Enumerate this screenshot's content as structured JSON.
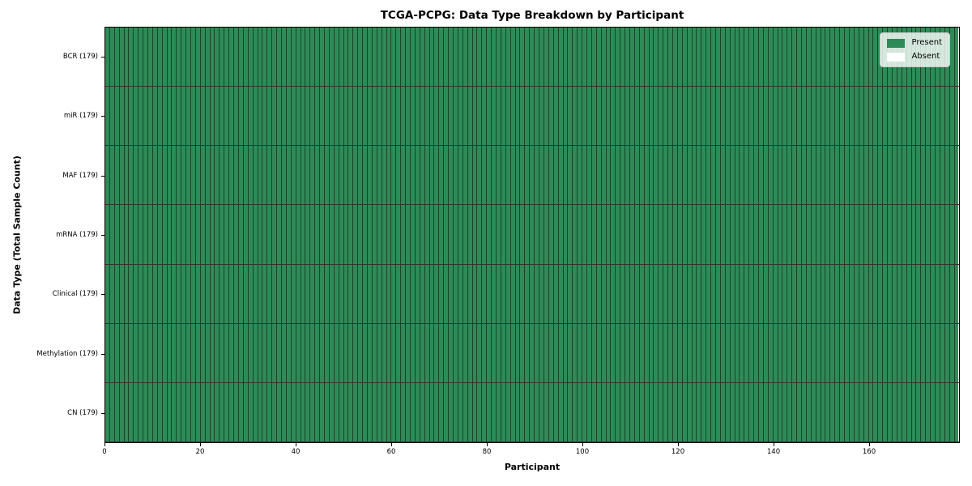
{
  "chart_data": {
    "type": "heatmap",
    "title": "TCGA-PCPG: Data Type Breakdown by Participant",
    "xlabel": "Participant",
    "ylabel": "Data Type (Total Sample Count)",
    "xlim": [
      0,
      179
    ],
    "x_ticks": [
      0,
      20,
      40,
      60,
      80,
      100,
      120,
      140,
      160
    ],
    "n_participants": 179,
    "rows": [
      {
        "label": "BCR (179)",
        "data_type": "BCR",
        "total_samples": 179,
        "present": 179,
        "absent": 0
      },
      {
        "label": "miR (179)",
        "data_type": "miR",
        "total_samples": 179,
        "present": 179,
        "absent": 0
      },
      {
        "label": "MAF (179)",
        "data_type": "MAF",
        "total_samples": 179,
        "present": 179,
        "absent": 0
      },
      {
        "label": "mRNA (179)",
        "data_type": "mRNA",
        "total_samples": 179,
        "present": 179,
        "absent": 0
      },
      {
        "label": "Clinical (179)",
        "data_type": "Clinical",
        "total_samples": 179,
        "present": 179,
        "absent": 0
      },
      {
        "label": "Methylation (179)",
        "data_type": "Methylation",
        "total_samples": 179,
        "present": 179,
        "absent": 0
      },
      {
        "label": "CN (179)",
        "data_type": "CN",
        "total_samples": 179,
        "present": 179,
        "absent": 0
      }
    ],
    "legend": {
      "position": "upper right",
      "entries": [
        {
          "label": "Present",
          "color": "#2e8b57"
        },
        {
          "label": "Absent",
          "color": "#ffffff"
        }
      ]
    },
    "colors": {
      "present": "#2e8b57",
      "absent": "#ffffff",
      "cell_edge": "rgba(0,0,0,0.5)",
      "row_edge": "rgba(0,0,0,0.8)",
      "spine": "#000000"
    },
    "grid": false
  }
}
